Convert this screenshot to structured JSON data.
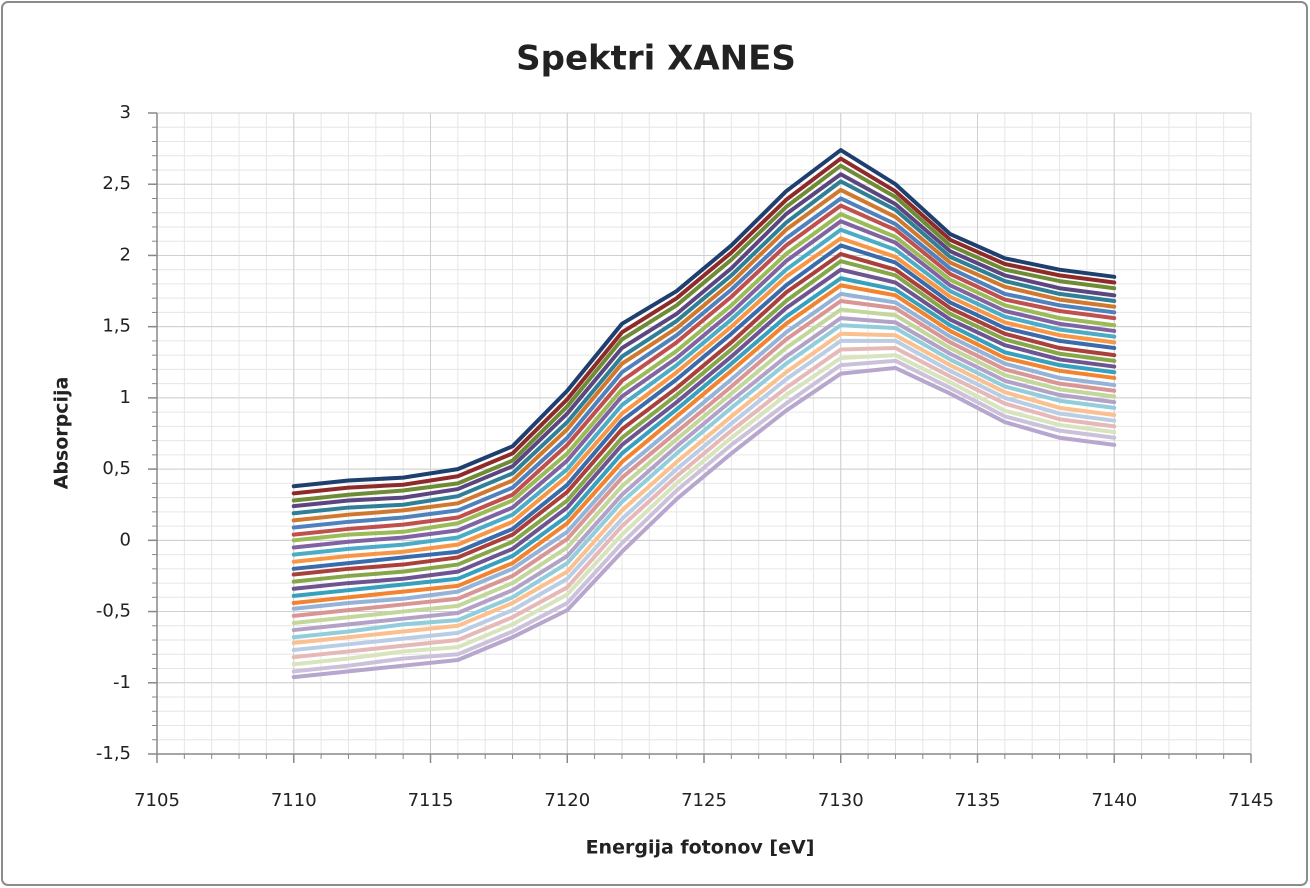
{
  "chart_data": {
    "type": "line",
    "title": "Spektri XANES",
    "x_label": "Energija fotonov [eV]",
    "y_label": "Absorpcija",
    "x": [
      7110,
      7112,
      7114,
      7116,
      7118,
      7120,
      7122,
      7124,
      7126,
      7128,
      7130,
      7132,
      7134,
      7136,
      7138,
      7140
    ],
    "xlim": [
      7105,
      7145
    ],
    "xticks": [
      7105,
      7110,
      7115,
      7120,
      7125,
      7130,
      7135,
      7140,
      7145
    ],
    "ylim": [
      -1.5,
      3
    ],
    "yticks": [
      {
        "value": -1.5,
        "label": "-1,5"
      },
      -1,
      {
        "value": -0.5,
        "label": "-0,5"
      },
      0,
      {
        "value": 0.5,
        "label": "0,5"
      },
      1,
      {
        "value": 1.5,
        "label": "1,5"
      },
      2,
      {
        "value": 2.5,
        "label": "2,5"
      },
      3
    ],
    "grid": true,
    "minor_grid": {
      "x": 1,
      "y": 0.1
    },
    "series": [
      {
        "color": "#1F3F6E",
        "values": [
          0.38,
          0.42,
          0.44,
          0.5,
          0.66,
          1.05,
          1.52,
          1.75,
          2.07,
          2.45,
          2.74,
          2.5,
          2.15,
          1.98,
          1.9,
          1.85
        ]
      },
      {
        "color": "#8E2B2A",
        "values": [
          0.33,
          0.37,
          0.39,
          0.45,
          0.61,
          0.99,
          1.46,
          1.7,
          2.02,
          2.39,
          2.68,
          2.45,
          2.11,
          1.94,
          1.86,
          1.81
        ]
      },
      {
        "color": "#6E8B35",
        "values": [
          0.28,
          0.32,
          0.35,
          0.4,
          0.56,
          0.94,
          1.41,
          1.65,
          1.97,
          2.34,
          2.63,
          2.41,
          2.07,
          1.9,
          1.82,
          1.77
        ]
      },
      {
        "color": "#5B4680",
        "values": [
          0.24,
          0.28,
          0.3,
          0.36,
          0.52,
          0.89,
          1.35,
          1.59,
          1.91,
          2.29,
          2.57,
          2.36,
          2.03,
          1.86,
          1.77,
          1.72
        ]
      },
      {
        "color": "#2F7F96",
        "values": [
          0.19,
          0.23,
          0.25,
          0.31,
          0.47,
          0.83,
          1.29,
          1.54,
          1.86,
          2.23,
          2.52,
          2.32,
          1.99,
          1.82,
          1.73,
          1.68
        ]
      },
      {
        "color": "#D0782E",
        "values": [
          0.14,
          0.18,
          0.21,
          0.26,
          0.42,
          0.78,
          1.24,
          1.49,
          1.81,
          2.18,
          2.46,
          2.27,
          1.95,
          1.78,
          1.69,
          1.64
        ]
      },
      {
        "color": "#4F81BD",
        "values": [
          0.09,
          0.13,
          0.16,
          0.21,
          0.37,
          0.72,
          1.18,
          1.44,
          1.76,
          2.12,
          2.4,
          2.22,
          1.91,
          1.73,
          1.65,
          1.6
        ]
      },
      {
        "color": "#C0504D",
        "values": [
          0.04,
          0.08,
          0.11,
          0.16,
          0.32,
          0.67,
          1.12,
          1.39,
          1.71,
          2.07,
          2.35,
          2.18,
          1.87,
          1.69,
          1.61,
          1.56
        ]
      },
      {
        "color": "#9BBB59",
        "values": [
          0,
          0.04,
          0.06,
          0.12,
          0.28,
          0.61,
          1.06,
          1.33,
          1.65,
          2.01,
          2.29,
          2.13,
          1.83,
          1.65,
          1.56,
          1.51
        ]
      },
      {
        "color": "#8064A2",
        "values": [
          -0.05,
          -0.01,
          0.02,
          0.07,
          0.23,
          0.56,
          1.01,
          1.28,
          1.6,
          1.96,
          2.24,
          2.09,
          1.79,
          1.61,
          1.52,
          1.47
        ]
      },
      {
        "color": "#4BACC6",
        "values": [
          -0.1,
          -0.06,
          -0.03,
          0.02,
          0.18,
          0.5,
          0.95,
          1.23,
          1.55,
          1.9,
          2.18,
          2.04,
          1.75,
          1.57,
          1.48,
          1.43
        ]
      },
      {
        "color": "#F79646",
        "values": [
          -0.15,
          -0.11,
          -0.08,
          -0.03,
          0.13,
          0.45,
          0.89,
          1.18,
          1.5,
          1.85,
          2.12,
          1.99,
          1.71,
          1.53,
          1.44,
          1.39
        ]
      },
      {
        "color": "#3A6BAA",
        "values": [
          -0.2,
          -0.16,
          -0.12,
          -0.08,
          0.08,
          0.39,
          0.84,
          1.13,
          1.45,
          1.79,
          2.07,
          1.95,
          1.67,
          1.49,
          1.4,
          1.35
        ]
      },
      {
        "color": "#A9403C",
        "values": [
          -0.24,
          -0.2,
          -0.17,
          -0.12,
          0.04,
          0.34,
          0.78,
          1.07,
          1.39,
          1.74,
          2.01,
          1.9,
          1.63,
          1.45,
          1.35,
          1.3
        ]
      },
      {
        "color": "#86A64A",
        "values": [
          -0.29,
          -0.25,
          -0.22,
          -0.17,
          -0.01,
          0.28,
          0.72,
          1.02,
          1.34,
          1.68,
          1.96,
          1.86,
          1.59,
          1.41,
          1.31,
          1.26
        ]
      },
      {
        "color": "#6E5490",
        "values": [
          -0.34,
          -0.3,
          -0.27,
          -0.22,
          -0.06,
          0.23,
          0.67,
          0.97,
          1.29,
          1.63,
          1.9,
          1.81,
          1.55,
          1.37,
          1.27,
          1.22
        ]
      },
      {
        "color": "#37A0BD",
        "values": [
          -0.39,
          -0.35,
          -0.31,
          -0.27,
          -0.11,
          0.17,
          0.61,
          0.92,
          1.24,
          1.57,
          1.84,
          1.76,
          1.51,
          1.32,
          1.23,
          1.18
        ]
      },
      {
        "color": "#F08430",
        "values": [
          -0.44,
          -0.4,
          -0.36,
          -0.32,
          -0.16,
          0.12,
          0.55,
          0.87,
          1.19,
          1.52,
          1.79,
          1.72,
          1.47,
          1.28,
          1.19,
          1.14
        ]
      },
      {
        "color": "#95B3D7",
        "values": [
          -0.48,
          -0.44,
          -0.41,
          -0.36,
          -0.2,
          0.06,
          0.49,
          0.81,
          1.13,
          1.46,
          1.73,
          1.67,
          1.43,
          1.24,
          1.14,
          1.09
        ]
      },
      {
        "color": "#D99694",
        "values": [
          -0.53,
          -0.49,
          -0.45,
          -0.41,
          -0.25,
          0.01,
          0.44,
          0.76,
          1.08,
          1.41,
          1.68,
          1.63,
          1.39,
          1.2,
          1.1,
          1.05
        ]
      },
      {
        "color": "#C3D69B",
        "values": [
          -0.58,
          -0.54,
          -0.5,
          -0.46,
          -0.3,
          -0.05,
          0.38,
          0.71,
          1.03,
          1.35,
          1.62,
          1.58,
          1.35,
          1.16,
          1.06,
          1.01
        ]
      },
      {
        "color": "#B3A2C7",
        "values": [
          -0.63,
          -0.59,
          -0.55,
          -0.51,
          -0.35,
          -0.11,
          0.32,
          0.66,
          0.98,
          1.29,
          1.56,
          1.53,
          1.31,
          1.12,
          1.02,
          0.97
        ]
      },
      {
        "color": "#92CDDC",
        "values": [
          -0.68,
          -0.64,
          -0.59,
          -0.56,
          -0.4,
          -0.16,
          0.27,
          0.61,
          0.93,
          1.24,
          1.51,
          1.49,
          1.27,
          1.08,
          0.98,
          0.93
        ]
      },
      {
        "color": "#FAC090",
        "values": [
          -0.72,
          -0.68,
          -0.64,
          -0.6,
          -0.44,
          -0.22,
          0.21,
          0.55,
          0.87,
          1.18,
          1.45,
          1.44,
          1.23,
          1.04,
          0.93,
          0.88
        ]
      },
      {
        "color": "#B9CDE5",
        "values": [
          -0.77,
          -0.73,
          -0.69,
          -0.65,
          -0.49,
          -0.27,
          0.15,
          0.5,
          0.82,
          1.13,
          1.4,
          1.4,
          1.19,
          1.0,
          0.89,
          0.84
        ]
      },
      {
        "color": "#E6B9B8",
        "values": [
          -0.82,
          -0.78,
          -0.74,
          -0.7,
          -0.54,
          -0.33,
          0.1,
          0.45,
          0.77,
          1.07,
          1.34,
          1.35,
          1.15,
          0.96,
          0.85,
          0.8
        ]
      },
      {
        "color": "#D7E4BD",
        "values": [
          -0.87,
          -0.83,
          -0.78,
          -0.75,
          -0.59,
          -0.38,
          0.04,
          0.4,
          0.72,
          1.02,
          1.28,
          1.3,
          1.11,
          0.91,
          0.81,
          0.76
        ]
      },
      {
        "color": "#CCC1DA",
        "values": [
          -0.92,
          -0.88,
          -0.83,
          -0.8,
          -0.64,
          -0.44,
          -0.02,
          0.35,
          0.67,
          0.96,
          1.23,
          1.26,
          1.07,
          0.87,
          0.77,
          0.72
        ]
      },
      {
        "color": "#B7A6CD",
        "values": [
          -0.96,
          -0.92,
          -0.88,
          -0.84,
          -0.68,
          -0.49,
          -0.08,
          0.29,
          0.61,
          0.91,
          1.17,
          1.21,
          1.03,
          0.83,
          0.72,
          0.67
        ]
      }
    ]
  }
}
